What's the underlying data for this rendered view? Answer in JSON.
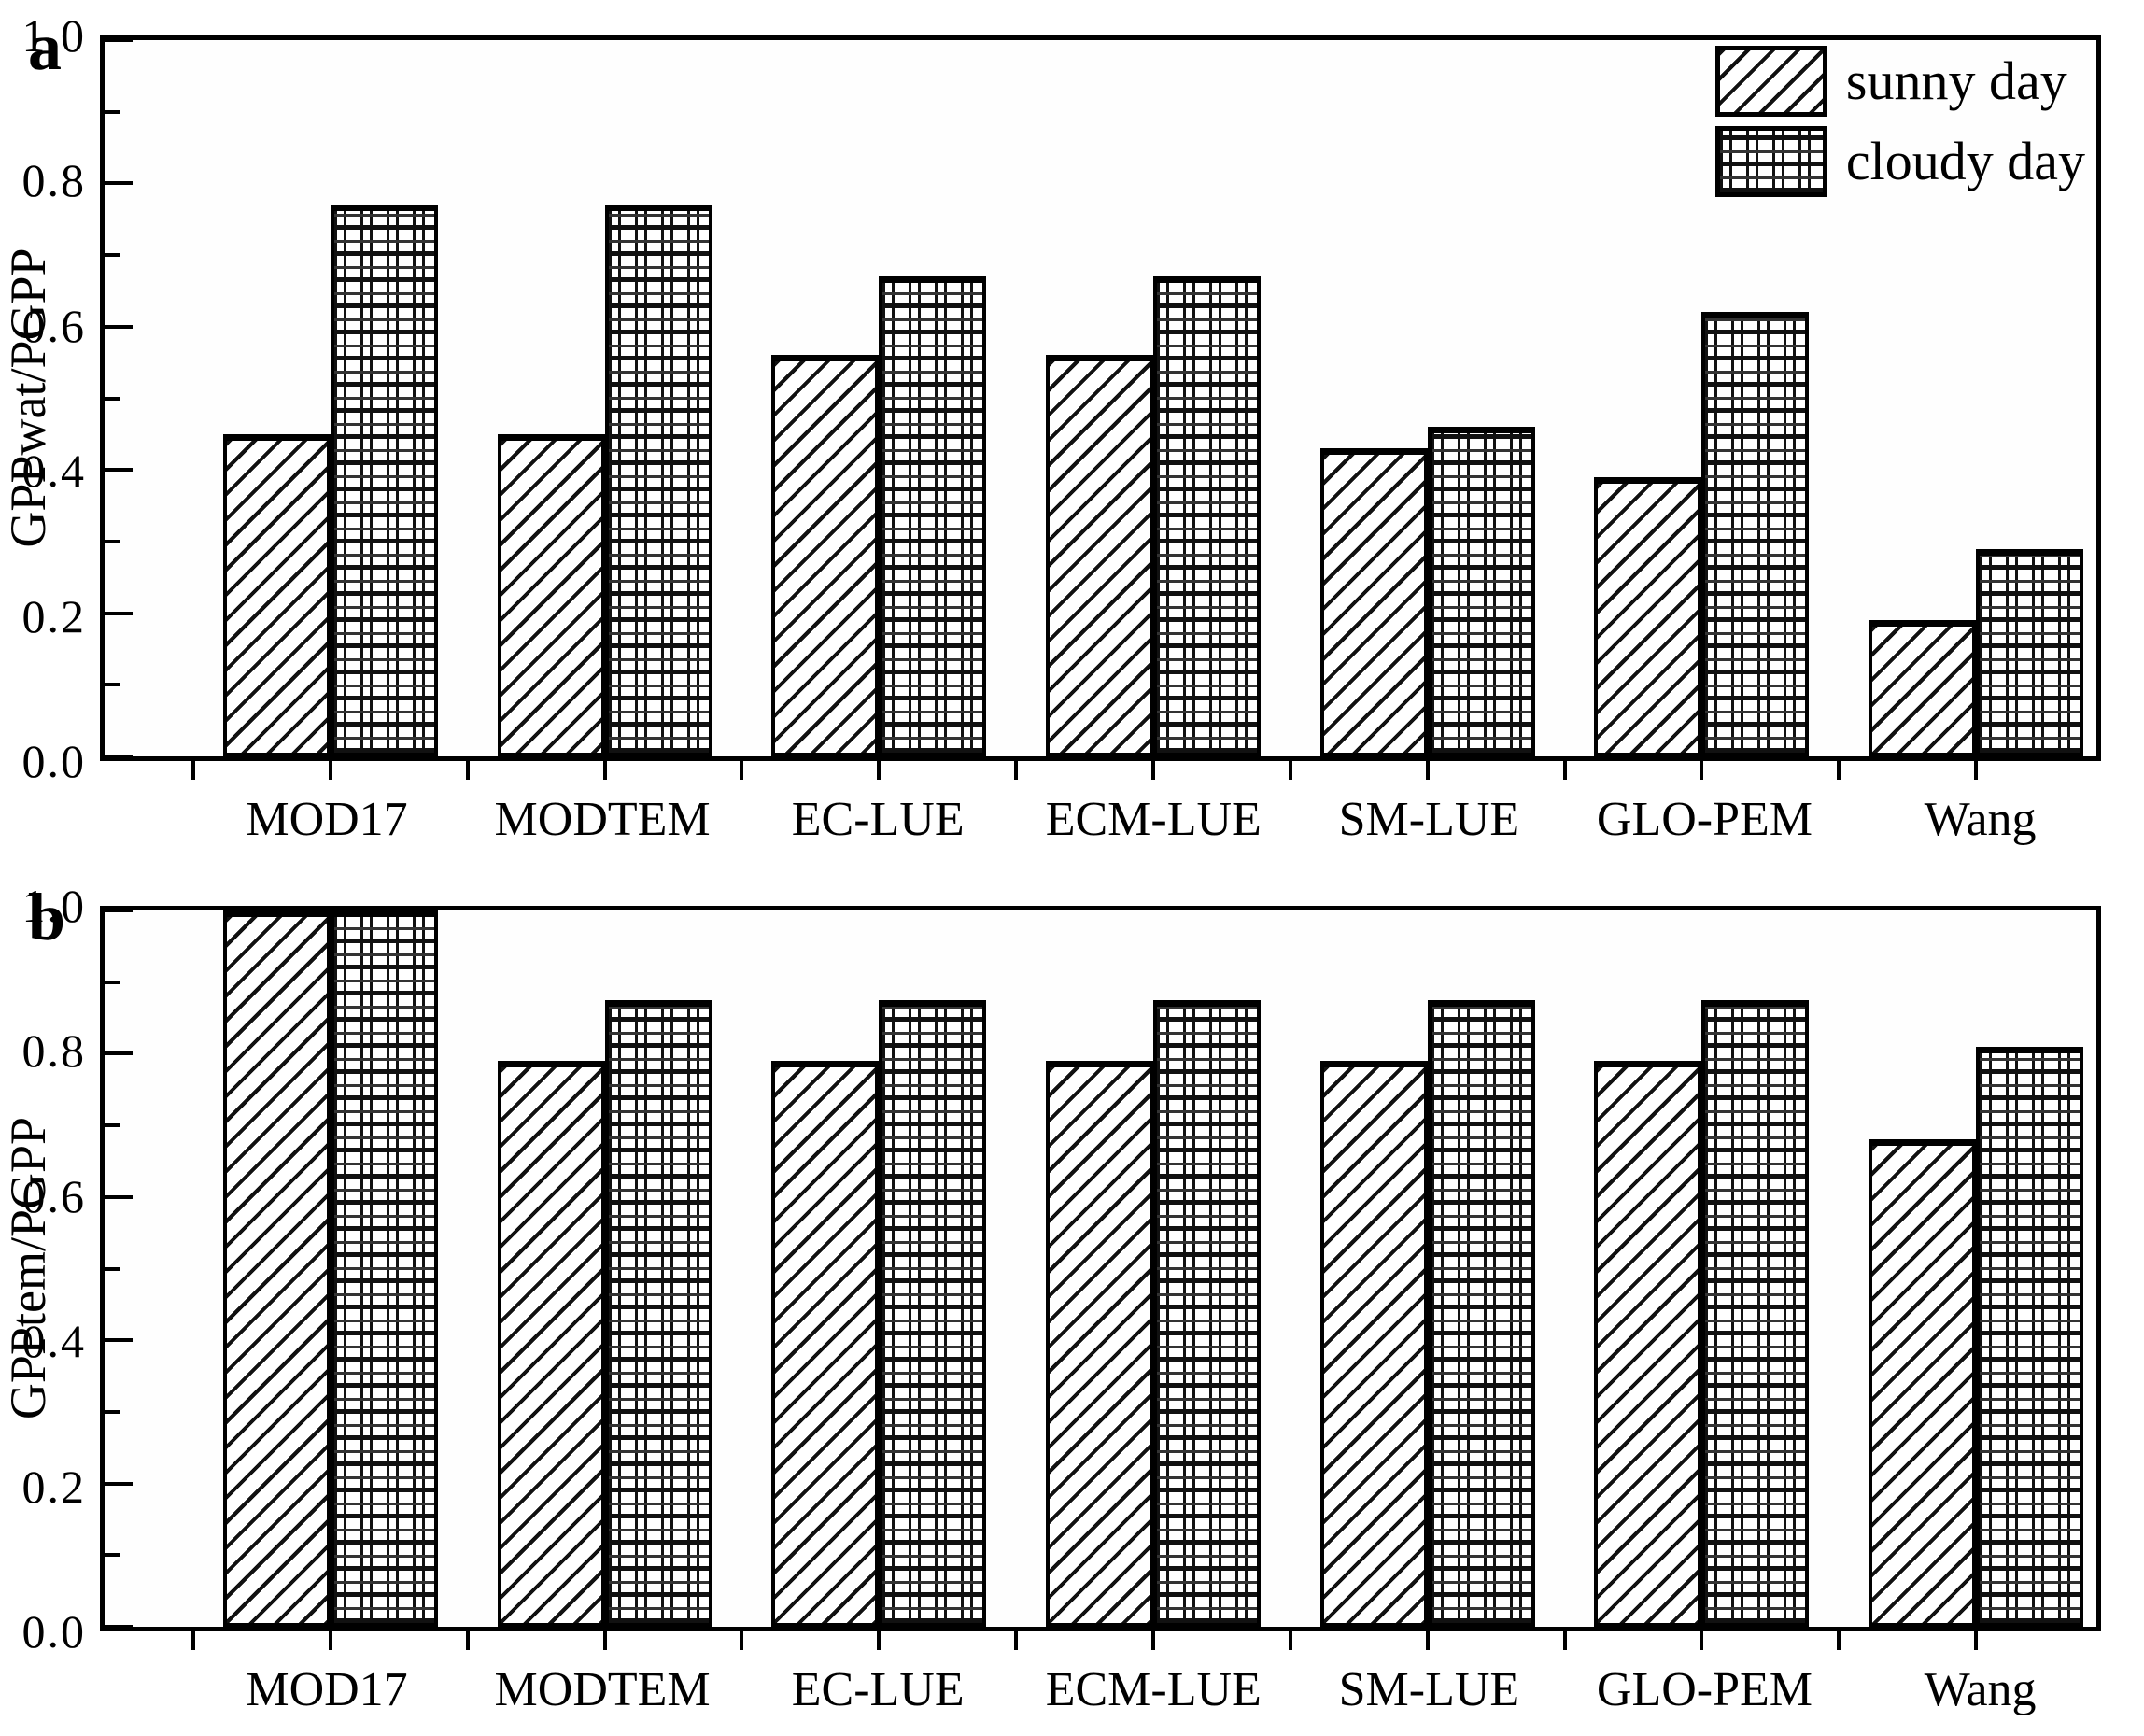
{
  "figure": {
    "background_color": "#ffffff",
    "line_color": "#000000",
    "panels_count": 2
  },
  "legend": {
    "position": "top-right-of-panel-a",
    "entries": [
      {
        "label": "sunny day",
        "pattern": "diagonal-hatch"
      },
      {
        "label": "cloudy day",
        "pattern": "cross-hatch"
      }
    ]
  },
  "chart_data": [
    {
      "type": "bar",
      "panel_label": "a",
      "title": "",
      "xlabel": "",
      "ylabel": "GPPwat/PGPP",
      "ylim": [
        0.0,
        1.0
      ],
      "ytick_step": 0.2,
      "ytick_minor_step": 0.1,
      "grid": false,
      "categories": [
        "MOD17",
        "MODTEM",
        "EC-LUE",
        "ECM-LUE",
        "SM-LUE",
        "GLO-PEM",
        "Wang"
      ],
      "series": [
        {
          "name": "sunny day",
          "pattern": "diagonal-hatch",
          "values": [
            0.45,
            0.45,
            0.56,
            0.56,
            0.43,
            0.39,
            0.19
          ]
        },
        {
          "name": "cloudy day",
          "pattern": "cross-hatch",
          "values": [
            0.77,
            0.77,
            0.67,
            0.67,
            0.46,
            0.62,
            0.29
          ]
        }
      ]
    },
    {
      "type": "bar",
      "panel_label": "b",
      "title": "",
      "xlabel": "",
      "ylabel": "GPPtem/PGPP",
      "ylim": [
        0.0,
        1.0
      ],
      "ytick_step": 0.2,
      "ytick_minor_step": 0.1,
      "grid": false,
      "categories": [
        "MOD17",
        "MODTEM",
        "EC-LUE",
        "ECM-LUE",
        "SM-LUE",
        "GLO-PEM",
        "Wang"
      ],
      "series": [
        {
          "name": "sunny day",
          "pattern": "diagonal-hatch",
          "values": [
            1.0,
            0.79,
            0.79,
            0.79,
            0.79,
            0.79,
            0.68
          ]
        },
        {
          "name": "cloudy day",
          "pattern": "cross-hatch",
          "values": [
            1.0,
            0.875,
            0.875,
            0.875,
            0.875,
            0.875,
            0.81
          ]
        }
      ]
    }
  ]
}
